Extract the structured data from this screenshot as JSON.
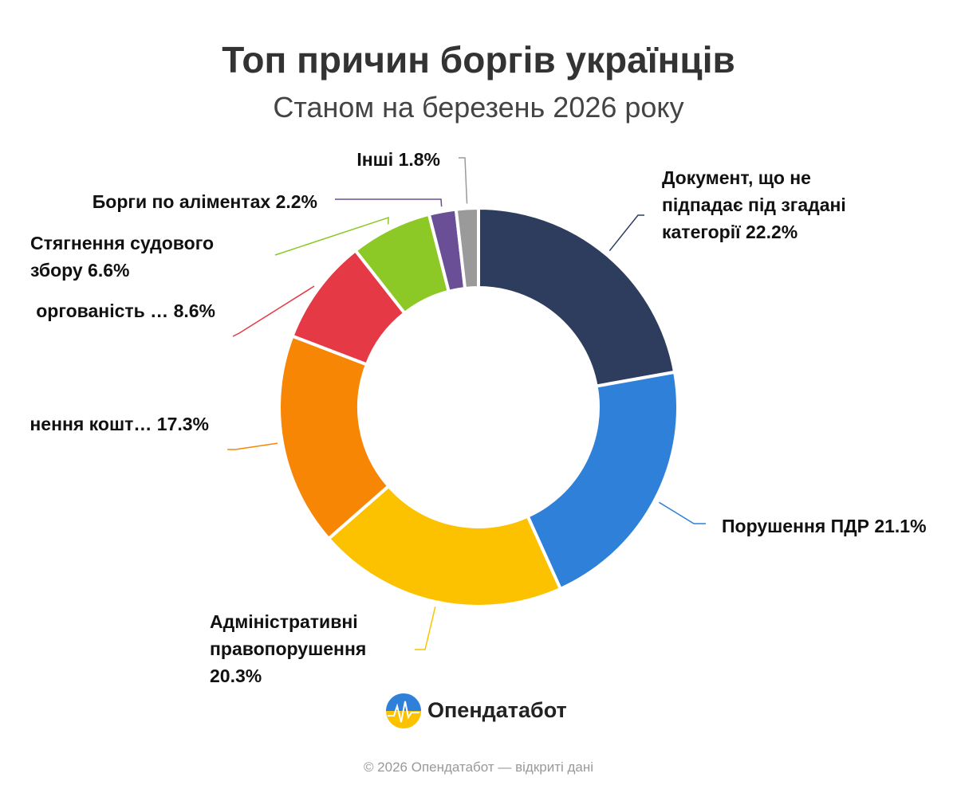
{
  "chart_data": {
    "type": "pie",
    "donut": true,
    "title": "Топ причин боргів українців",
    "subtitle": "Станом на березень 2026 року",
    "categories": [
      "Документ, що не підпадає під згадані категорії",
      "Порушення ПДР",
      "Адміністративні правопорушення",
      "нення кошт…",
      "оргованість …",
      "Стягнення судового збору",
      "Борги по аліментах",
      "Інші"
    ],
    "values": [
      22.2,
      21.1,
      20.3,
      17.3,
      8.6,
      6.6,
      2.2,
      1.8
    ],
    "value_labels": [
      "22.2%",
      "21.1%",
      "20.3%",
      "17.3%",
      "8.6%",
      "6.6%",
      "2.2%",
      "1.8%"
    ],
    "colors": [
      "#2e3d5e",
      "#2f80d9",
      "#fcc200",
      "#f88605",
      "#e53946",
      "#8cc826",
      "#6a4f97",
      "#9a9a9a"
    ]
  },
  "brand": "Опендатабот",
  "footer": "© 2026 Опендатабот — відкриті дані"
}
